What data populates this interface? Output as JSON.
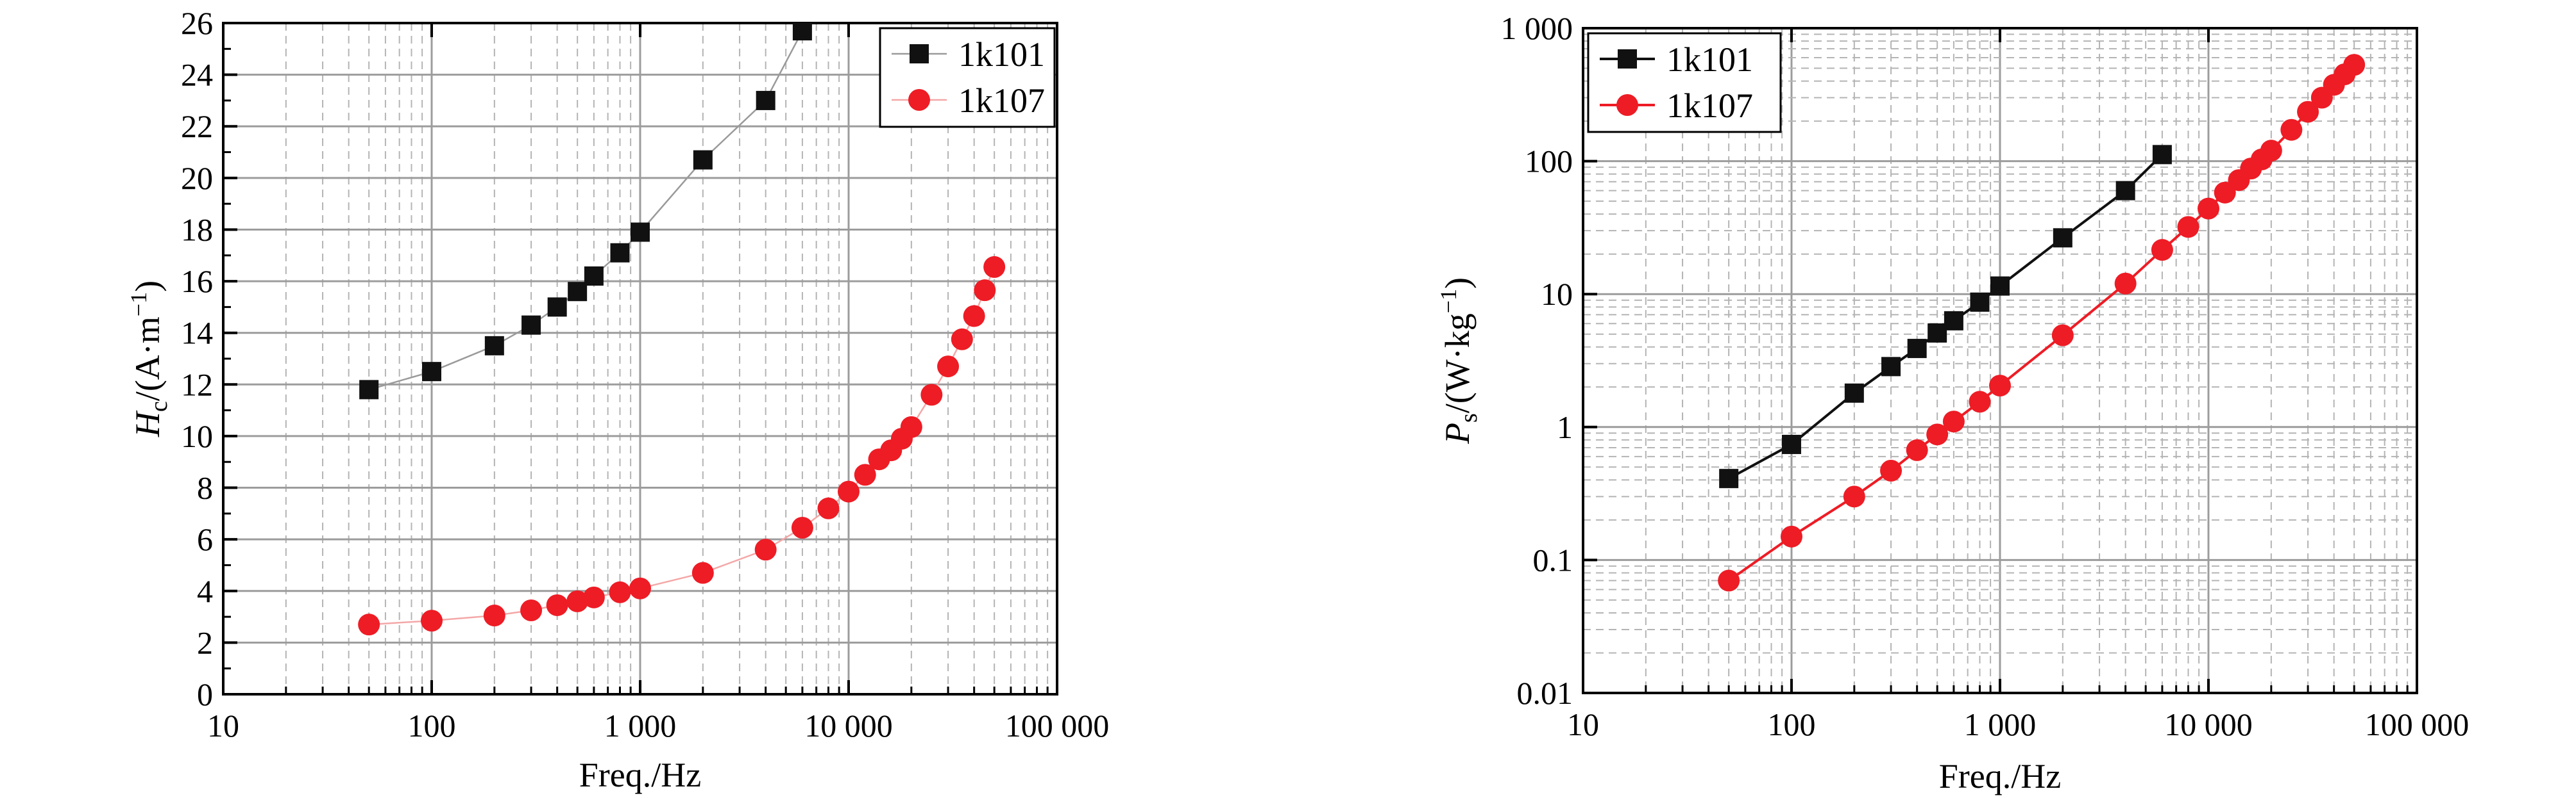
{
  "colors": {
    "series_1k101": "#111111",
    "series_1k107": "#ee1c25",
    "line_1k107_left": "#f4a7a7",
    "line_1k101_left": "#9a9a9a",
    "grid_major": "#9c9c9c",
    "grid_minor": "#b4b4b4"
  },
  "chart_data": [
    {
      "id": "hc",
      "type": "line",
      "title": "",
      "xlabel": "Freq./Hz",
      "ylabel_main": "H",
      "ylabel_sub": "c",
      "ylabel_rest": "/(A·m",
      "ylabel_exp": "−1",
      "ylabel_close": ")",
      "xscale": "log",
      "yscale": "linear",
      "xlim": [
        10,
        100000
      ],
      "ylim": [
        0,
        26
      ],
      "xticks": [
        10,
        100,
        1000,
        10000,
        100000
      ],
      "xtick_labels": [
        "10",
        "100",
        "1 000",
        "10 000",
        "100 000"
      ],
      "yticks": [
        0,
        2,
        4,
        6,
        8,
        10,
        12,
        14,
        16,
        18,
        20,
        22,
        24,
        26
      ],
      "ytick_labels": [
        "0",
        "2",
        "4",
        "6",
        "8",
        "10",
        "12",
        "14",
        "16",
        "18",
        "20",
        "22",
        "24",
        "26"
      ],
      "grid": true,
      "legend_position": "top-right",
      "series": [
        {
          "name": "1k101",
          "marker": "square",
          "x": [
            50,
            100,
            200,
            300,
            400,
            500,
            600,
            800,
            1000,
            2000,
            4000,
            6000
          ],
          "y": [
            11.8,
            12.5,
            13.5,
            14.3,
            15.0,
            15.6,
            16.2,
            17.1,
            17.9,
            20.7,
            23.0,
            25.7
          ]
        },
        {
          "name": "1k107",
          "marker": "circle",
          "x": [
            50,
            100,
            200,
            300,
            400,
            500,
            600,
            800,
            1000,
            2000,
            4000,
            6000,
            8000,
            10000,
            12000,
            14000,
            16000,
            18000,
            20000,
            25000,
            30000,
            35000,
            40000,
            45000,
            50000
          ],
          "y": [
            2.7,
            2.85,
            3.05,
            3.25,
            3.45,
            3.6,
            3.75,
            3.95,
            4.1,
            4.7,
            5.6,
            6.45,
            7.2,
            7.85,
            8.5,
            9.1,
            9.45,
            9.9,
            10.35,
            11.6,
            12.7,
            13.75,
            14.65,
            15.65,
            16.55
          ]
        }
      ]
    },
    {
      "id": "ps",
      "type": "line",
      "title": "",
      "xlabel": "Freq./Hz",
      "ylabel_main": "P",
      "ylabel_sub": "s",
      "ylabel_rest": "/(W·kg",
      "ylabel_exp": "−1",
      "ylabel_close": ")",
      "xscale": "log",
      "yscale": "log",
      "xlim": [
        10,
        100000
      ],
      "ylim": [
        0.01,
        1000
      ],
      "xticks": [
        10,
        100,
        1000,
        10000,
        100000
      ],
      "xtick_labels": [
        "10",
        "100",
        "1 000",
        "10 000",
        "100 000"
      ],
      "yticks": [
        0.01,
        0.1,
        1,
        10,
        100,
        1000
      ],
      "ytick_labels": [
        "0.01",
        "0.1",
        "1",
        "10",
        "100",
        "1 000"
      ],
      "grid": true,
      "legend_position": "top-left",
      "series": [
        {
          "name": "1k101",
          "marker": "square",
          "x": [
            50,
            100,
            200,
            300,
            400,
            500,
            600,
            800,
            1000,
            2000,
            4000,
            6000
          ],
          "y": [
            0.41,
            0.74,
            1.8,
            2.85,
            3.9,
            5.1,
            6.3,
            8.7,
            11.5,
            26.5,
            60,
            112
          ]
        },
        {
          "name": "1k107",
          "marker": "circle",
          "x": [
            50,
            100,
            200,
            300,
            400,
            500,
            600,
            800,
            1000,
            2000,
            4000,
            6000,
            8000,
            10000,
            12000,
            14000,
            16000,
            18000,
            20000,
            25000,
            30000,
            35000,
            40000,
            45000,
            50000
          ],
          "y": [
            0.07,
            0.15,
            0.3,
            0.47,
            0.67,
            0.88,
            1.1,
            1.55,
            2.05,
            4.9,
            12,
            21.5,
            32,
            44,
            58,
            72,
            88,
            103,
            120,
            172,
            235,
            300,
            375,
            450,
            530
          ]
        }
      ]
    }
  ]
}
